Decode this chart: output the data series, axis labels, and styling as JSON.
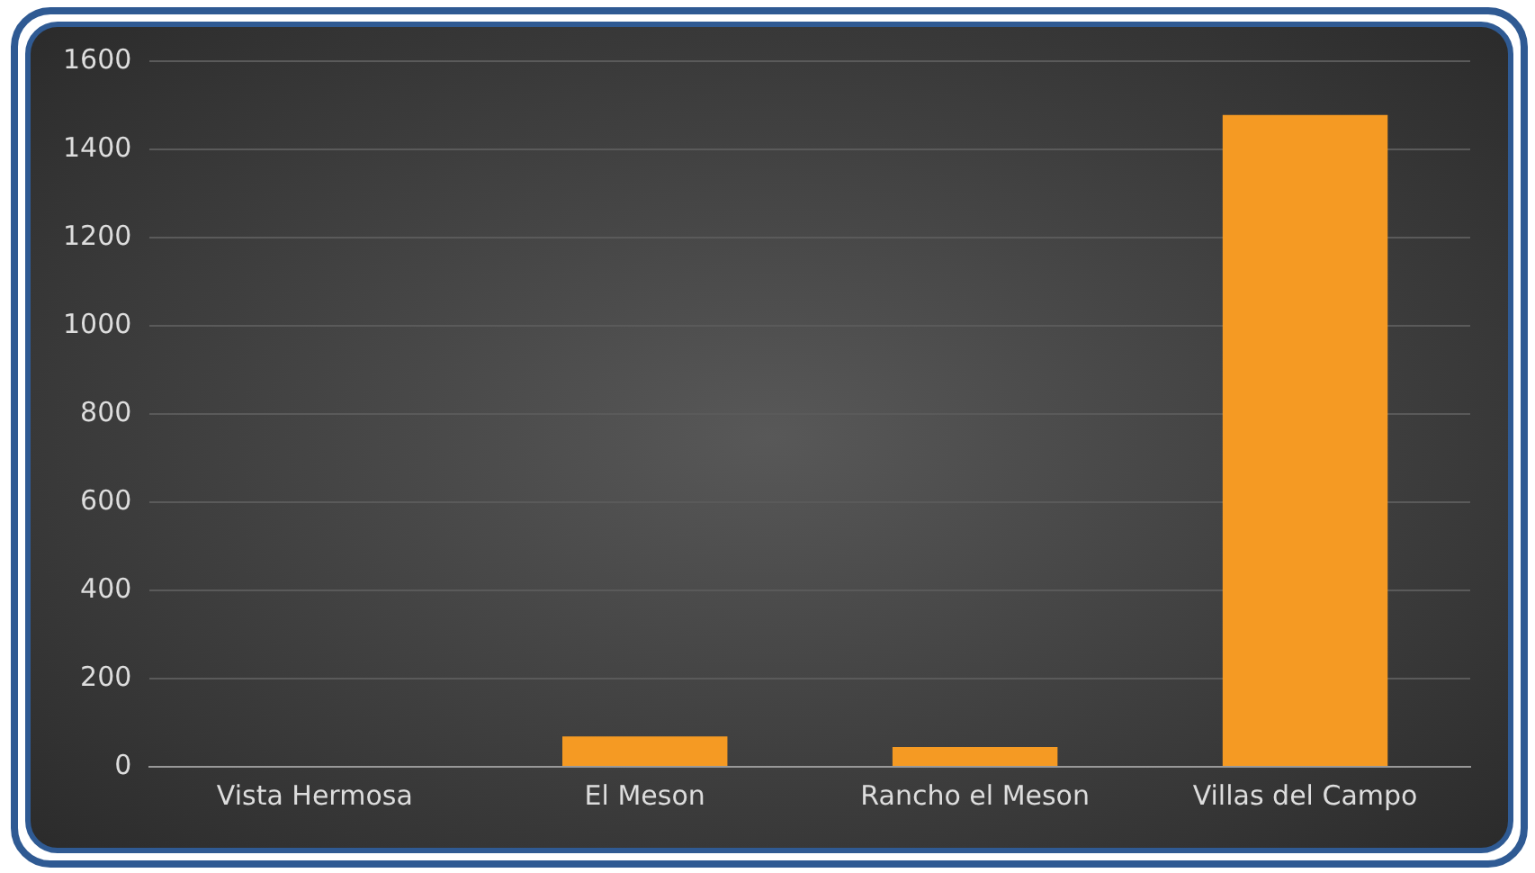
{
  "chart_data": {
    "type": "bar",
    "categories": [
      "Vista Hermosa",
      "El Meson",
      "Rancho el Meson",
      "Villas del Campo"
    ],
    "values": [
      2,
      69,
      45,
      1478
    ],
    "color": "#f59a23",
    "ylim": [
      0,
      1600
    ],
    "yticks": [
      0,
      200,
      400,
      600,
      800,
      1000,
      1200,
      1400,
      1600
    ],
    "grid": "y",
    "legend": false
  }
}
